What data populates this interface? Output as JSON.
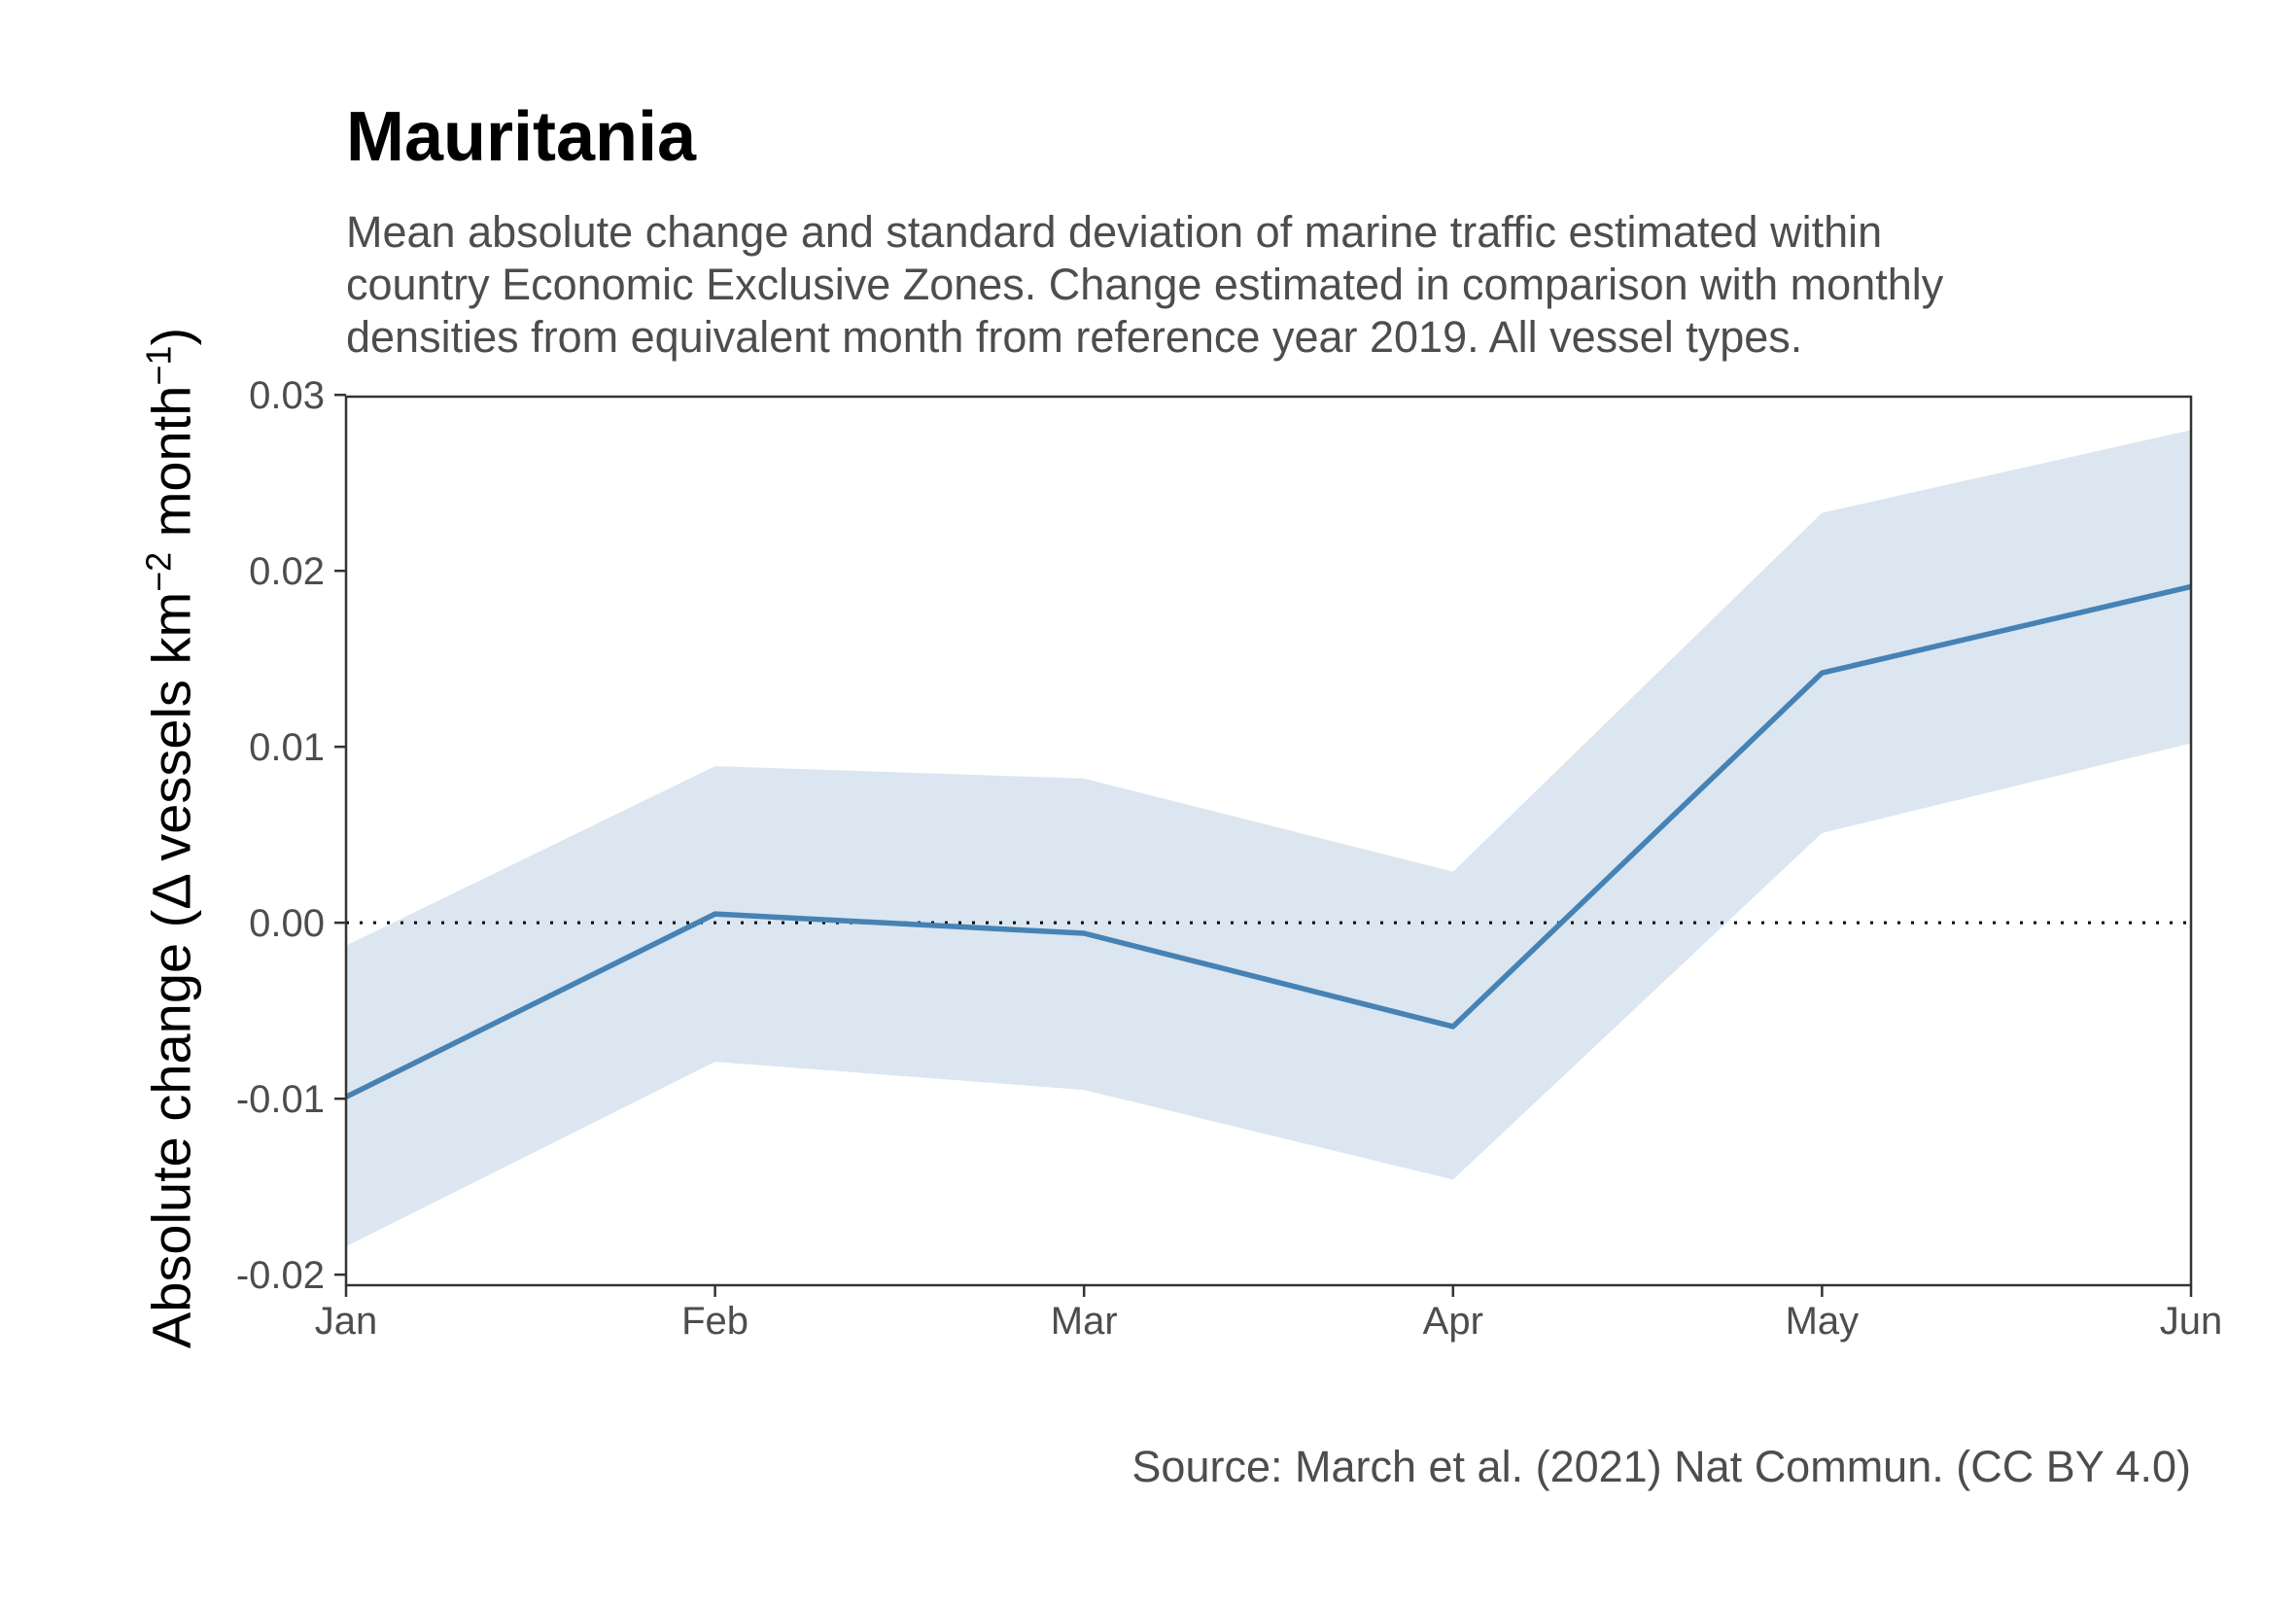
{
  "chart_data": {
    "type": "line",
    "title": "Mauritania",
    "subtitle_lines": [
      "Mean absolute change and standard deviation of marine traffic estimated within",
      "country Economic Exclusive Zones. Change estimated in comparison with monthly",
      "densities from equivalent month from reference year 2019. All vessel types."
    ],
    "caption": "Source: March et al. (2021) Nat Commun. (CC BY 4.0)",
    "ylabel": {
      "prefix": "Absolute change (",
      "delta": "Δ",
      "vessels": " vessels km",
      "exp1": "−2",
      "month": " month",
      "exp2": "−1",
      "suffix": ")"
    },
    "xlabel": "",
    "categories": [
      "Jan",
      "Feb",
      "Mar",
      "Apr",
      "May",
      "Jun"
    ],
    "series": [
      {
        "values": [
          -0.0099,
          0.0005,
          -0.0006,
          -0.0059,
          0.0142,
          0.0191
        ],
        "lower": [
          -0.0184,
          -0.0079,
          -0.0095,
          -0.0146,
          0.0051,
          0.0102
        ],
        "upper": [
          -0.0013,
          0.0089,
          0.0082,
          0.0029,
          0.0233,
          0.028
        ]
      }
    ],
    "ylim": [
      -0.0206,
      0.0299
    ],
    "yticks": [
      -0.02,
      -0.01,
      0.0,
      0.01,
      0.02,
      0.03
    ],
    "ytick_labels": [
      "-0.02",
      "-0.01",
      "0.00",
      "0.01",
      "0.02",
      "0.03"
    ],
    "reference_line": 0,
    "grid": false,
    "colors": {
      "line": "#4682b4",
      "band": "#dbe6f1",
      "axis": "#333333",
      "text": "#4d4d4d"
    }
  }
}
